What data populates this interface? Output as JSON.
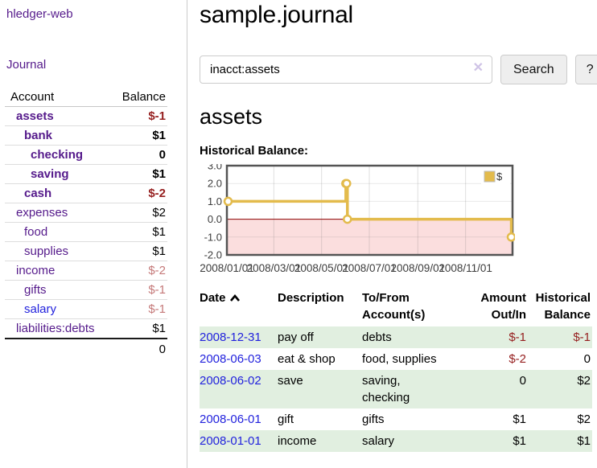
{
  "app": {
    "brand": "hledger-web"
  },
  "sidebar": {
    "nav_journal": "Journal",
    "table": {
      "account_header": "Account",
      "balance_header": "Balance",
      "accounts": [
        {
          "name": "assets",
          "balance": "$-1"
        },
        {
          "name": "bank",
          "balance": "$1"
        },
        {
          "name": "checking",
          "balance": "0"
        },
        {
          "name": "saving",
          "balance": "$1"
        },
        {
          "name": "cash",
          "balance": "$-2"
        },
        {
          "name": "expenses",
          "balance": "$2"
        },
        {
          "name": "food",
          "balance": "$1"
        },
        {
          "name": "supplies",
          "balance": "$1"
        },
        {
          "name": "income",
          "balance": "$-2"
        },
        {
          "name": "gifts",
          "balance": "$-1"
        },
        {
          "name": "salary",
          "balance": "$-1"
        },
        {
          "name": "liabilities:debts",
          "balance": "$1"
        }
      ],
      "total": "0"
    }
  },
  "main": {
    "title": "sample.journal",
    "search": {
      "value": "inacct:assets",
      "clear": "✕",
      "button": "Search",
      "help": "?"
    },
    "account_heading": "assets",
    "chart_heading": "Historical Balance:",
    "register": {
      "headers": {
        "date": "Date",
        "description": "Description",
        "account": "To/From\nAccount(s)",
        "amount": "Amount\nOut/In",
        "balance": "Historical\nBalance"
      },
      "rows": [
        {
          "date": "2008-12-31",
          "description": "pay off",
          "account": "debts",
          "amount": "$-1",
          "balance": "$-1"
        },
        {
          "date": "2008-06-03",
          "description": "eat & shop",
          "account": "food, supplies",
          "amount": "$-2",
          "balance": "0"
        },
        {
          "date": "2008-06-02",
          "description": "save",
          "account": "saving,\nchecking",
          "amount": "0",
          "balance": "$2"
        },
        {
          "date": "2008-06-01",
          "description": "gift",
          "account": "gifts",
          "amount": "$1",
          "balance": "$2"
        },
        {
          "date": "2008-01-01",
          "description": "income",
          "account": "salary",
          "amount": "$1",
          "balance": "$1"
        }
      ]
    }
  },
  "chart_data": {
    "type": "line",
    "title": "Historical Balance:",
    "step": true,
    "series": [
      {
        "name": "$",
        "points": [
          [
            "2008-01-01",
            1
          ],
          [
            "2008-06-01",
            2
          ],
          [
            "2008-06-02",
            2
          ],
          [
            "2008-06-03",
            0
          ],
          [
            "2008-12-31",
            -1
          ]
        ]
      }
    ],
    "xlim": [
      "2008-01-01",
      "2008-12-31"
    ],
    "ylim": [
      -2,
      3
    ],
    "yticks": [
      3,
      2,
      1,
      0,
      -1,
      -2
    ],
    "xticks": [
      [
        "2008-01-01",
        "2008/01/01"
      ],
      [
        "2008-03-01",
        "2008/03/01"
      ],
      [
        "2008-05-01",
        "2008/05/01"
      ],
      [
        "2008-07-01",
        "2008/07/01"
      ],
      [
        "2008-09-01",
        "2008/09/01"
      ],
      [
        "2008-11-01",
        "2008/11/01"
      ]
    ],
    "legend_position": "top-right",
    "grid": true
  },
  "colors": {
    "link_purple": "#551a8b",
    "link_blue": "#2222dd",
    "negative_strong": "#962020",
    "negative_light": "#c57979",
    "row_green": "#e1efe0",
    "chart_line": "#e3bb4c",
    "chart_negative_fill": "#fbdede",
    "chart_zero_line": "#8b0000",
    "chart_border": "#545454"
  }
}
